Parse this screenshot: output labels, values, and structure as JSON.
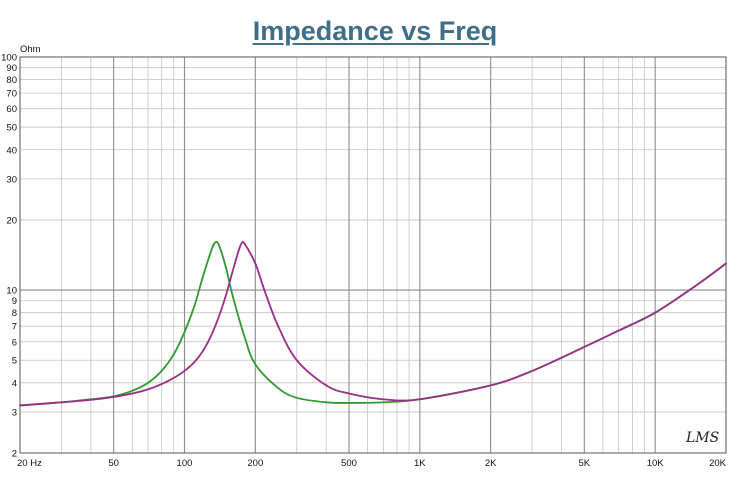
{
  "chart_data": {
    "type": "line",
    "title": "Impedance vs Freq",
    "ylabel": "Ohm",
    "xlabel": "",
    "x_scale": "log",
    "y_scale": "log",
    "xlim": [
      20,
      20000
    ],
    "ylim": [
      2,
      100
    ],
    "grid": true,
    "x_ticks": [
      {
        "value": 20,
        "label": "20  Hz"
      },
      {
        "value": 50,
        "label": "50"
      },
      {
        "value": 100,
        "label": "100"
      },
      {
        "value": 200,
        "label": "200"
      },
      {
        "value": 500,
        "label": "500"
      },
      {
        "value": 1000,
        "label": "1K"
      },
      {
        "value": 2000,
        "label": "2K"
      },
      {
        "value": 5000,
        "label": "5K"
      },
      {
        "value": 10000,
        "label": "10K"
      },
      {
        "value": 20000,
        "label": "20K"
      }
    ],
    "y_ticks": [
      {
        "value": 2,
        "label": "2"
      },
      {
        "value": 3,
        "label": "3"
      },
      {
        "value": 4,
        "label": "4"
      },
      {
        "value": 5,
        "label": "5"
      },
      {
        "value": 6,
        "label": "6"
      },
      {
        "value": 7,
        "label": "7"
      },
      {
        "value": 8,
        "label": "8"
      },
      {
        "value": 9,
        "label": "9"
      },
      {
        "value": 10,
        "label": "10"
      },
      {
        "value": 20,
        "label": "20"
      },
      {
        "value": 30,
        "label": "30"
      },
      {
        "value": 40,
        "label": "40"
      },
      {
        "value": 50,
        "label": "50"
      },
      {
        "value": 60,
        "label": "60"
      },
      {
        "value": 70,
        "label": "70"
      },
      {
        "value": 80,
        "label": "80"
      },
      {
        "value": 90,
        "label": "90"
      },
      {
        "value": 100,
        "label": "100"
      }
    ],
    "series": [
      {
        "color": "#2f9a2f",
        "x": [
          20,
          30,
          40,
          50,
          60,
          70,
          80,
          90,
          100,
          110,
          120,
          130,
          135,
          140,
          150,
          160,
          180,
          200,
          250,
          300,
          400,
          500,
          700,
          1000,
          2000,
          3000,
          5000,
          7000,
          10000,
          15000,
          20000
        ],
        "y": [
          3.2,
          3.3,
          3.4,
          3.5,
          3.7,
          4.0,
          4.5,
          5.3,
          6.6,
          8.5,
          11.5,
          14.8,
          16.0,
          15.6,
          12.5,
          9.5,
          6.3,
          4.8,
          3.8,
          3.45,
          3.3,
          3.28,
          3.3,
          3.4,
          3.9,
          4.5,
          5.7,
          6.7,
          8.0,
          10.5,
          13.0
        ]
      },
      {
        "color": "#9a2f8a",
        "x": [
          20,
          30,
          40,
          50,
          60,
          70,
          80,
          90,
          100,
          110,
          120,
          130,
          140,
          150,
          160,
          170,
          175,
          180,
          200,
          220,
          250,
          300,
          400,
          500,
          700,
          1000,
          2000,
          3000,
          5000,
          7000,
          10000,
          15000,
          20000
        ],
        "y": [
          3.2,
          3.3,
          3.38,
          3.48,
          3.6,
          3.75,
          3.95,
          4.2,
          4.5,
          4.9,
          5.5,
          6.4,
          7.7,
          9.5,
          12.0,
          14.8,
          15.9,
          15.8,
          13.0,
          9.8,
          7.0,
          5.0,
          3.9,
          3.6,
          3.4,
          3.4,
          3.9,
          4.5,
          5.7,
          6.7,
          8.0,
          10.5,
          13.0
        ]
      }
    ]
  },
  "watermark": "LMS"
}
